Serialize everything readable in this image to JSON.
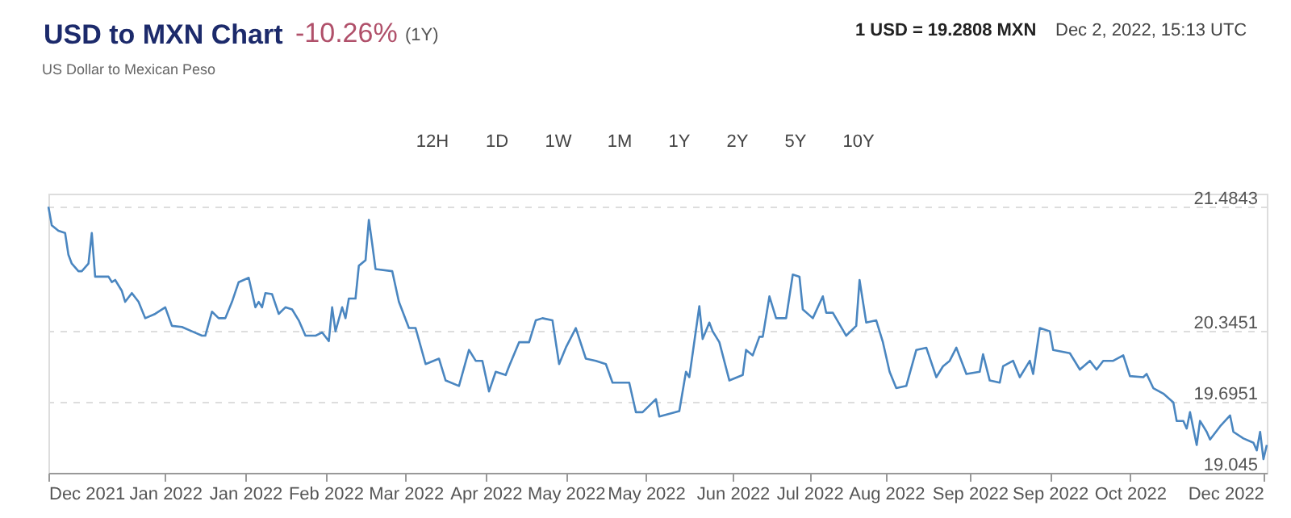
{
  "chart_data": {
    "type": "line",
    "title": "USD to MXN Chart",
    "subtitle": "US Dollar to Mexican Peso",
    "annotations": [
      "-10.26%",
      "(1Y)",
      "1 USD = 19.2808 MXN",
      "Dec 2, 2022, 15:13 UTC",
      "12H",
      "1D",
      "1W",
      "1M",
      "1Y",
      "2Y",
      "5Y",
      "10Y"
    ],
    "x": [
      "2021-12-02",
      "2021-12-03",
      "2021-12-05",
      "2021-12-07",
      "2021-12-08",
      "2021-12-09",
      "2021-12-11",
      "2021-12-12",
      "2021-12-14",
      "2021-12-15",
      "2021-12-16",
      "2021-12-20",
      "2021-12-21",
      "2021-12-22",
      "2021-12-24",
      "2021-12-25",
      "2021-12-27",
      "2021-12-29",
      "2021-12-31",
      "2022-01-03",
      "2022-01-06",
      "2022-01-08",
      "2022-01-11",
      "2022-01-14",
      "2022-01-17",
      "2022-01-18",
      "2022-01-20",
      "2022-01-22",
      "2022-01-24",
      "2022-01-26",
      "2022-01-28",
      "2022-01-31",
      "2022-02-02",
      "2022-02-03",
      "2022-02-04",
      "2022-02-05",
      "2022-02-07",
      "2022-02-09",
      "2022-02-11",
      "2022-02-13",
      "2022-02-15",
      "2022-02-17",
      "2022-02-20",
      "2022-02-22",
      "2022-02-24",
      "2022-02-25",
      "2022-02-26",
      "2022-02-28",
      "2022-03-01",
      "2022-03-02",
      "2022-03-04",
      "2022-03-05",
      "2022-03-07",
      "2022-03-08",
      "2022-03-09",
      "2022-03-10",
      "2022-03-15",
      "2022-03-17",
      "2022-03-20",
      "2022-03-22",
      "2022-03-25",
      "2022-03-29",
      "2022-03-31",
      "2022-04-04",
      "2022-04-07",
      "2022-04-09",
      "2022-04-11",
      "2022-04-13",
      "2022-04-15",
      "2022-04-18",
      "2022-04-19",
      "2022-04-22",
      "2022-04-25",
      "2022-04-27",
      "2022-04-29",
      "2022-05-02",
      "2022-05-04",
      "2022-05-06",
      "2022-05-09",
      "2022-05-12",
      "2022-05-15",
      "2022-05-18",
      "2022-05-20",
      "2022-05-25",
      "2022-05-27",
      "2022-05-29",
      "2022-06-02",
      "2022-06-03",
      "2022-06-09",
      "2022-06-11",
      "2022-06-12",
      "2022-06-15",
      "2022-06-16",
      "2022-06-18",
      "2022-06-19",
      "2022-06-21",
      "2022-06-24",
      "2022-06-28",
      "2022-06-29",
      "2022-07-01",
      "2022-07-03",
      "2022-07-04",
      "2022-07-06",
      "2022-07-08",
      "2022-07-11",
      "2022-07-13",
      "2022-07-15",
      "2022-07-16",
      "2022-07-19",
      "2022-07-22",
      "2022-07-23",
      "2022-07-25",
      "2022-07-29",
      "2022-08-01",
      "2022-08-02",
      "2022-08-04",
      "2022-08-07",
      "2022-08-09",
      "2022-08-11",
      "2022-08-13",
      "2022-08-16",
      "2022-08-19",
      "2022-08-22",
      "2022-08-25",
      "2022-08-27",
      "2022-08-29",
      "2022-08-31",
      "2022-09-03",
      "2022-09-07",
      "2022-09-08",
      "2022-09-10",
      "2022-09-13",
      "2022-09-14",
      "2022-09-17",
      "2022-09-19",
      "2022-09-22",
      "2022-09-23",
      "2022-09-25",
      "2022-09-28",
      "2022-09-29",
      "2022-10-04",
      "2022-10-07",
      "2022-10-10",
      "2022-10-12",
      "2022-10-14",
      "2022-10-17",
      "2022-10-20",
      "2022-10-22",
      "2022-10-26",
      "2022-10-27",
      "2022-10-29",
      "2022-11-01",
      "2022-11-04",
      "2022-11-05",
      "2022-11-07",
      "2022-11-08",
      "2022-11-09",
      "2022-11-11",
      "2022-11-12",
      "2022-11-14",
      "2022-11-15",
      "2022-11-18",
      "2022-11-21",
      "2022-11-22",
      "2022-11-25",
      "2022-11-28",
      "2022-11-29",
      "2022-11-30",
      "2022-12-01",
      "2022-12-02"
    ],
    "series": [
      {
        "color": "#4a86c0",
        "values": [
          21.48,
          21.31,
          21.26,
          21.24,
          21.04,
          20.96,
          20.89,
          20.89,
          20.96,
          21.24,
          20.84,
          20.84,
          20.79,
          20.81,
          20.71,
          20.61,
          20.69,
          20.61,
          20.46,
          20.5,
          20.56,
          20.39,
          20.38,
          20.34,
          20.3,
          20.3,
          20.52,
          20.46,
          20.46,
          20.61,
          20.79,
          20.83,
          20.56,
          20.61,
          20.56,
          20.69,
          20.68,
          20.5,
          20.56,
          20.54,
          20.44,
          20.3,
          20.3,
          20.33,
          20.25,
          20.56,
          20.34,
          20.56,
          20.46,
          20.64,
          20.64,
          20.94,
          20.99,
          21.36,
          21.14,
          20.91,
          20.89,
          20.61,
          20.37,
          20.37,
          20.04,
          20.09,
          19.89,
          19.84,
          20.17,
          20.07,
          20.07,
          19.79,
          19.97,
          19.94,
          20.02,
          20.24,
          20.24,
          20.44,
          20.46,
          20.44,
          20.04,
          20.19,
          20.37,
          20.09,
          20.07,
          20.04,
          19.87,
          19.87,
          19.6,
          19.6,
          19.72,
          19.56,
          19.61,
          19.97,
          19.92,
          20.57,
          20.27,
          20.42,
          20.34,
          20.24,
          19.89,
          19.94,
          20.17,
          20.12,
          20.29,
          20.29,
          20.66,
          20.46,
          20.46,
          20.86,
          20.84,
          20.54,
          20.46,
          20.66,
          20.51,
          20.51,
          20.3,
          20.39,
          20.81,
          20.42,
          20.44,
          20.24,
          19.97,
          19.82,
          19.84,
          20.17,
          20.19,
          19.92,
          20.02,
          20.07,
          20.19,
          19.95,
          19.97,
          20.13,
          19.89,
          19.87,
          20.02,
          20.07,
          19.92,
          20.07,
          19.95,
          20.37,
          20.34,
          20.17,
          20.14,
          19.99,
          20.07,
          19.99,
          20.07,
          20.07,
          20.12,
          19.93,
          19.92,
          19.95,
          19.82,
          19.77,
          19.69,
          19.52,
          19.52,
          19.45,
          19.6,
          19.3,
          19.52,
          19.42,
          19.35,
          19.47,
          19.57,
          19.42,
          19.36,
          19.32,
          19.25,
          19.42,
          19.17,
          19.3
        ]
      }
    ],
    "xlim": [
      "2021-12-02",
      "2022-12-02"
    ],
    "xticks": [
      {
        "value": "2021-12-02",
        "label": "Dec 2021"
      },
      {
        "value": "2022-01-06",
        "label": "Jan 2022"
      },
      {
        "value": "2022-01-30",
        "label": "Jan 2022"
      },
      {
        "value": "2022-02-23",
        "label": "Feb 2022"
      },
      {
        "value": "2022-03-19",
        "label": "Mar 2022"
      },
      {
        "value": "2022-04-12",
        "label": "Apr 2022"
      },
      {
        "value": "2022-05-06",
        "label": "May 2022"
      },
      {
        "value": "2022-05-30",
        "label": "May 2022"
      },
      {
        "value": "2022-06-25",
        "label": "Jun 2022"
      },
      {
        "value": "2022-07-18",
        "label": "Jul 2022"
      },
      {
        "value": "2022-08-10",
        "label": "Aug 2022"
      },
      {
        "value": "2022-09-04",
        "label": "Sep 2022"
      },
      {
        "value": "2022-09-28",
        "label": "Sep 2022"
      },
      {
        "value": "2022-10-22",
        "label": "Oct 2022"
      },
      {
        "value": "2022-12-01",
        "label": "Dec 2022"
      }
    ],
    "ylim": [
      19.045,
      21.6
    ],
    "yticks": [
      19.045,
      19.6951,
      20.3451,
      21.4843
    ],
    "grid": "y",
    "marker": "none",
    "line_style": "solid"
  }
}
